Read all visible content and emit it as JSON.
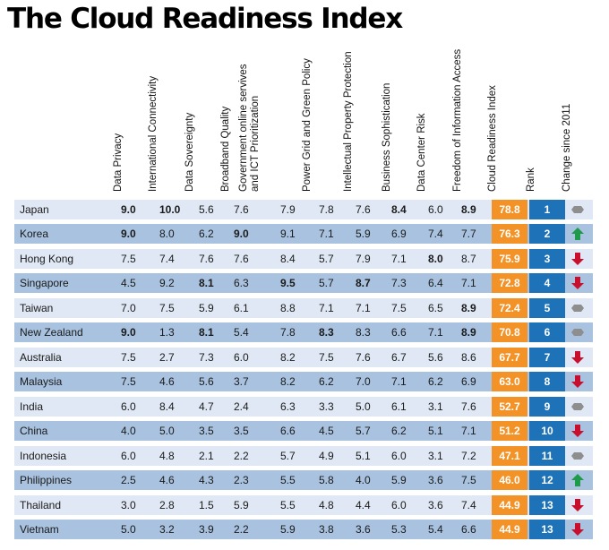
{
  "chart_data": {
    "type": "table",
    "title": "The Cloud Readiness Index",
    "columns": [
      "Data Privacy",
      "International Connectivity",
      "Data Sovereignty",
      "Broadband Quality",
      "Government online servives\nand ICT Prioritization",
      "Power Grid and Green Policy",
      "Intellectual Property Protection",
      "Business Sophistication",
      "Data Center Risk",
      "Freedom of Information Access",
      "Cloud Readiness Index",
      "Rank",
      "Change since 2011"
    ],
    "rows": [
      {
        "country": "Japan",
        "values": [
          "9.0",
          "10.0",
          "5.6",
          "7.6",
          "7.9",
          "7.8",
          "7.6",
          "8.4",
          "6.0",
          "8.9"
        ],
        "bold": [
          0,
          1,
          7,
          9
        ],
        "index": "78.8",
        "rank": "1",
        "change": "same"
      },
      {
        "country": "Korea",
        "values": [
          "9.0",
          "8.0",
          "6.2",
          "9.0",
          "9.1",
          "7.1",
          "5.9",
          "6.9",
          "7.4",
          "7.7"
        ],
        "bold": [
          0,
          3
        ],
        "index": "76.3",
        "rank": "2",
        "change": "up"
      },
      {
        "country": "Hong Kong",
        "values": [
          "7.5",
          "7.4",
          "7.6",
          "7.6",
          "8.4",
          "5.7",
          "7.9",
          "7.1",
          "8.0",
          "8.7"
        ],
        "bold": [
          8
        ],
        "index": "75.9",
        "rank": "3",
        "change": "down"
      },
      {
        "country": "Singapore",
        "values": [
          "4.5",
          "9.2",
          "8.1",
          "6.3",
          "9.5",
          "5.7",
          "8.7",
          "7.3",
          "6.4",
          "7.1"
        ],
        "bold": [
          2,
          4,
          6
        ],
        "index": "72.8",
        "rank": "4",
        "change": "down"
      },
      {
        "country": "Taiwan",
        "values": [
          "7.0",
          "7.5",
          "5.9",
          "6.1",
          "8.8",
          "7.1",
          "7.1",
          "7.5",
          "6.5",
          "8.9"
        ],
        "bold": [
          9
        ],
        "index": "72.4",
        "rank": "5",
        "change": "same"
      },
      {
        "country": "New Zealand",
        "values": [
          "9.0",
          "1.3",
          "8.1",
          "5.4",
          "7.8",
          "8.3",
          "8.3",
          "6.6",
          "7.1",
          "8.9"
        ],
        "bold": [
          0,
          2,
          5,
          9
        ],
        "index": "70.8",
        "rank": "6",
        "change": "same"
      },
      {
        "country": "Australia",
        "values": [
          "7.5",
          "2.7",
          "7.3",
          "6.0",
          "8.2",
          "7.5",
          "7.6",
          "6.7",
          "5.6",
          "8.6"
        ],
        "bold": [],
        "index": "67.7",
        "rank": "7",
        "change": "down"
      },
      {
        "country": "Malaysia",
        "values": [
          "7.5",
          "4.6",
          "5.6",
          "3.7",
          "8.2",
          "6.2",
          "7.0",
          "7.1",
          "6.2",
          "6.9"
        ],
        "bold": [],
        "index": "63.0",
        "rank": "8",
        "change": "down"
      },
      {
        "country": "India",
        "values": [
          "6.0",
          "8.4",
          "4.7",
          "2.4",
          "6.3",
          "3.3",
          "5.0",
          "6.1",
          "3.1",
          "7.6"
        ],
        "bold": [],
        "index": "52.7",
        "rank": "9",
        "change": "same"
      },
      {
        "country": "China",
        "values": [
          "4.0",
          "5.0",
          "3.5",
          "3.5",
          "6.6",
          "4.5",
          "5.7",
          "6.2",
          "5.1",
          "7.1"
        ],
        "bold": [],
        "index": "51.2",
        "rank": "10",
        "change": "down"
      },
      {
        "country": "Indonesia",
        "values": [
          "6.0",
          "4.8",
          "2.1",
          "2.2",
          "5.7",
          "4.9",
          "5.1",
          "6.0",
          "3.1",
          "7.2"
        ],
        "bold": [],
        "index": "47.1",
        "rank": "11",
        "change": "same"
      },
      {
        "country": "Philippines",
        "values": [
          "2.5",
          "4.6",
          "4.3",
          "2.3",
          "5.5",
          "5.8",
          "4.0",
          "5.9",
          "3.6",
          "7.5"
        ],
        "bold": [],
        "index": "46.0",
        "rank": "12",
        "change": "up"
      },
      {
        "country": "Thailand",
        "values": [
          "3.0",
          "2.8",
          "1.5",
          "5.9",
          "5.5",
          "4.8",
          "4.4",
          "6.0",
          "3.6",
          "7.4"
        ],
        "bold": [],
        "index": "44.9",
        "rank": "13",
        "change": "down"
      },
      {
        "country": "Vietnam",
        "values": [
          "5.0",
          "3.2",
          "3.9",
          "2.2",
          "5.9",
          "3.8",
          "3.6",
          "5.3",
          "5.4",
          "6.6"
        ],
        "bold": [],
        "index": "44.9",
        "rank": "13",
        "change": "down"
      }
    ],
    "colors": {
      "row_light": "#dfe8f4",
      "row_dark": "#a8c2df",
      "index_bg": "#f39226",
      "rank_bg": "#1e72b8",
      "up": "#1e9a4a",
      "down": "#c8102e",
      "same": "#8e8e8e"
    }
  }
}
